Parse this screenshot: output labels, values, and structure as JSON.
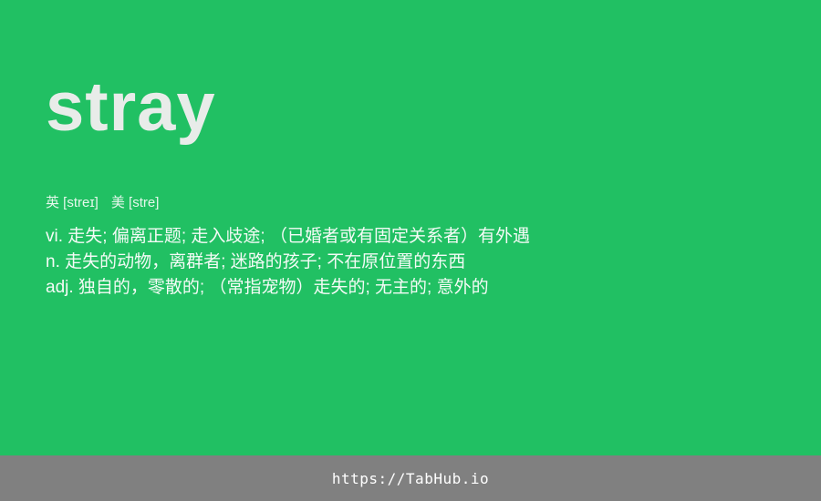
{
  "word": "stray",
  "phonetics": {
    "uk": "英 [streɪ]",
    "us": "美 [stre]"
  },
  "definitions": [
    "vi. 走失; 偏离正题; 走入歧途; （已婚者或有固定关系者）有外遇",
    "n. 走失的动物，离群者; 迷路的孩子; 不在原位置的东西",
    "adj. 独自的，零散的; （常指宠物）走失的; 无主的; 意外的"
  ],
  "footer": {
    "link": "https://TabHub.io"
  },
  "colors": {
    "background": "#21c063",
    "footer": "#808080"
  }
}
